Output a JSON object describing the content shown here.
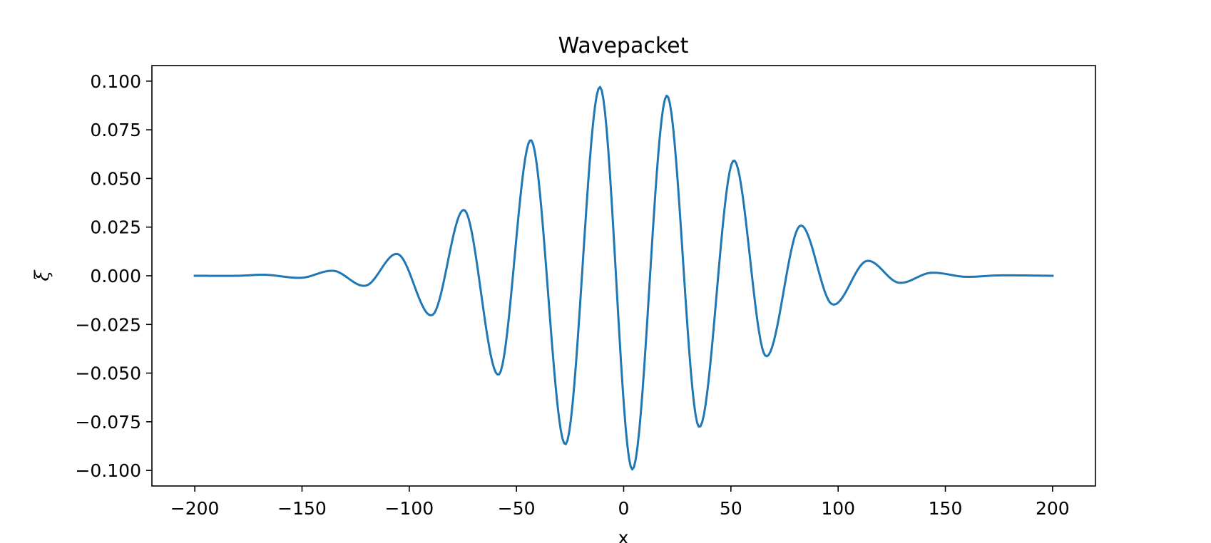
{
  "chart_data": {
    "type": "line",
    "title": "Wavepacket",
    "xlabel": "x",
    "ylabel": "ξ",
    "xlim": [
      -220,
      220
    ],
    "ylim": [
      -0.108,
      0.108
    ],
    "xticks": [
      -200,
      -150,
      -100,
      -50,
      0,
      50,
      100,
      150,
      200
    ],
    "xtick_labels": [
      "−200",
      "−150",
      "−100",
      "−50",
      "0",
      "50",
      "100",
      "150",
      "200"
    ],
    "yticks": [
      -0.1,
      -0.075,
      -0.05,
      -0.025,
      0.0,
      0.025,
      0.05,
      0.075,
      0.1
    ],
    "ytick_labels": [
      "−0.100",
      "−0.075",
      "−0.050",
      "−0.025",
      "0.000",
      "0.025",
      "0.050",
      "0.075",
      "0.100"
    ],
    "grid": false,
    "series": [
      {
        "color": "#1f77b4",
        "x": [
          -200,
          -180,
          -167,
          -150,
          -135,
          -120,
          -105,
          -89,
          -74,
          -58,
          -43,
          -27,
          -11,
          4,
          20,
          35,
          51,
          66,
          82,
          97,
          113,
          128,
          143,
          159,
          175,
          200
        ],
        "y": [
          0.0,
          0.0,
          0.0005,
          -0.001,
          0.0025,
          -0.005,
          0.011,
          -0.02,
          0.0335,
          -0.0505,
          0.0695,
          -0.0865,
          0.097,
          -0.0995,
          0.0925,
          -0.0775,
          0.059,
          -0.041,
          0.0255,
          -0.0145,
          0.0075,
          -0.0035,
          0.0015,
          -0.0005,
          0.0002,
          0.0
        ]
      }
    ]
  }
}
